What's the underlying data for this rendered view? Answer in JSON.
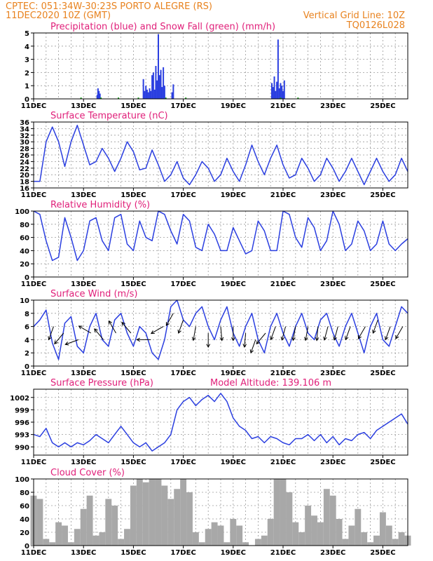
{
  "header": {
    "line1": "CPTEC:   051:34W-30:23S   PORTO ALEGRE (RS)",
    "line2": "11DEC2020 10Z (GMT)",
    "grid_note": "Vertical Grid Line: 10Z",
    "code": "TQ0126L028"
  },
  "colors": {
    "header": "#e8821e",
    "title": "#e0207a",
    "series": "#2b3fe0",
    "snow": "#19a019",
    "cloud": "#a8a8a8"
  },
  "x_tick_labels": [
    "11DEC",
    "13DEC",
    "15DEC",
    "17DEC",
    "19DEC",
    "21DEC",
    "23DEC",
    "25DEC"
  ],
  "chart_data": [
    {
      "id": "precip",
      "type": "bar",
      "title": "Precipitation (blue) and Snow Fall (green) (mm/h)",
      "ylim": [
        0,
        5
      ],
      "yticks": [
        0,
        1,
        2,
        3,
        4,
        5
      ],
      "x_range_days": [
        0,
        15.0
      ],
      "series": [
        {
          "name": "Precipitation",
          "x": [
            2.55,
            2.58,
            2.62,
            2.66,
            4.4,
            4.45,
            4.5,
            4.55,
            4.6,
            4.65,
            4.7,
            4.75,
            4.8,
            4.85,
            4.9,
            4.95,
            5.0,
            5.05,
            5.1,
            5.15,
            5.2,
            5.25,
            5.55,
            5.6,
            9.55,
            9.6,
            9.65,
            9.7,
            9.75,
            9.8,
            9.85,
            9.9,
            9.95,
            10.0,
            10.05
          ],
          "values": [
            0.3,
            0.8,
            0.6,
            0.4,
            1.5,
            0.6,
            1.0,
            0.7,
            0.5,
            0.8,
            0.6,
            1.8,
            2.0,
            0.7,
            2.5,
            1.4,
            4.9,
            1.8,
            2.2,
            0.9,
            2.4,
            1.0,
            0.5,
            1.1,
            1.2,
            0.9,
            1.7,
            0.6,
            1.3,
            4.5,
            0.8,
            1.2,
            1.0,
            0.6,
            1.4
          ]
        },
        {
          "name": "Snow Fall",
          "x": [
            1.9,
            2.7,
            3.4,
            4.2,
            5.3,
            6.1,
            9.9,
            10.6
          ],
          "values": [
            0.05,
            0.05,
            0.05,
            0.05,
            0.05,
            0.05,
            0.05,
            0.05
          ]
        }
      ]
    },
    {
      "id": "temp",
      "type": "line",
      "title": "Surface Temperature (nC)",
      "ylim": [
        16,
        36
      ],
      "yticks": [
        16,
        18,
        20,
        22,
        24,
        26,
        28,
        30,
        32,
        34,
        36
      ],
      "x_range_days": [
        0,
        15.0
      ],
      "series": [
        {
          "name": "Temperature",
          "x": [
            0,
            0.25,
            0.5,
            0.75,
            1.0,
            1.25,
            1.5,
            1.75,
            2.0,
            2.25,
            2.5,
            2.75,
            3.0,
            3.25,
            3.5,
            3.75,
            4.0,
            4.25,
            4.5,
            4.75,
            5.0,
            5.25,
            5.5,
            5.75,
            6.0,
            6.25,
            6.5,
            6.75,
            7.0,
            7.25,
            7.5,
            7.75,
            8.0,
            8.25,
            8.5,
            8.75,
            9.0,
            9.25,
            9.5,
            9.75,
            10.0,
            10.25,
            10.5,
            10.75,
            11.0,
            11.25,
            11.5,
            11.75,
            12.0,
            12.25,
            12.5,
            12.75,
            13.0,
            13.25,
            13.5,
            13.75,
            14.0,
            14.25,
            14.5,
            14.75,
            15.0
          ],
          "values": [
            18,
            18,
            30,
            34.5,
            30,
            22.5,
            30,
            35,
            29,
            23,
            24,
            28,
            25,
            21,
            25,
            30,
            27,
            21.5,
            22,
            27.5,
            23,
            18,
            20,
            24,
            19,
            17,
            20,
            24,
            22,
            18,
            20,
            25,
            21,
            18,
            23,
            29,
            24,
            20,
            25,
            29,
            23,
            19,
            20,
            25,
            22,
            18,
            20,
            25,
            22,
            18,
            21,
            25,
            21,
            17,
            21,
            25,
            21,
            18,
            20,
            25,
            21
          ]
        }
      ]
    },
    {
      "id": "rh",
      "type": "line",
      "title": "Relative Humidity (%)",
      "ylim": [
        0,
        100
      ],
      "yticks": [
        0,
        20,
        40,
        60,
        80,
        100
      ],
      "x_range_days": [
        0,
        15.0
      ],
      "series": [
        {
          "name": "Relative Humidity",
          "x": [
            0,
            0.25,
            0.5,
            0.75,
            1.0,
            1.25,
            1.5,
            1.75,
            2.0,
            2.25,
            2.5,
            2.75,
            3.0,
            3.25,
            3.5,
            3.75,
            4.0,
            4.25,
            4.5,
            4.75,
            5.0,
            5.25,
            5.5,
            5.75,
            6.0,
            6.25,
            6.5,
            6.75,
            7.0,
            7.25,
            7.5,
            7.75,
            8.0,
            8.25,
            8.5,
            8.75,
            9.0,
            9.25,
            9.5,
            9.75,
            10.0,
            10.25,
            10.5,
            10.75,
            11.0,
            11.25,
            11.5,
            11.75,
            12.0,
            12.25,
            12.5,
            12.75,
            13.0,
            13.25,
            13.5,
            13.75,
            14.0,
            14.25,
            14.5,
            14.75,
            15.0
          ],
          "values": [
            100,
            95,
            55,
            25,
            30,
            90,
            60,
            25,
            40,
            85,
            90,
            55,
            40,
            90,
            95,
            50,
            40,
            85,
            60,
            55,
            100,
            95,
            70,
            50,
            95,
            85,
            45,
            40,
            80,
            65,
            40,
            40,
            75,
            55,
            35,
            40,
            85,
            70,
            40,
            40,
            100,
            95,
            60,
            45,
            90,
            75,
            40,
            55,
            100,
            80,
            40,
            50,
            85,
            70,
            40,
            50,
            85,
            50,
            40,
            50,
            58
          ]
        }
      ]
    },
    {
      "id": "wind",
      "type": "line",
      "title": "Surface Wind (m/s)",
      "ylim": [
        0,
        10
      ],
      "yticks": [
        0,
        2,
        4,
        6,
        8,
        10
      ],
      "x_range_days": [
        0,
        15.0
      ],
      "series": [
        {
          "name": "Wind Speed",
          "x": [
            0,
            0.25,
            0.5,
            0.75,
            1.0,
            1.25,
            1.5,
            1.75,
            2.0,
            2.25,
            2.5,
            2.75,
            3.0,
            3.25,
            3.5,
            3.75,
            4.0,
            4.25,
            4.5,
            4.75,
            5.0,
            5.25,
            5.5,
            5.75,
            6.0,
            6.25,
            6.5,
            6.75,
            7.0,
            7.25,
            7.5,
            7.75,
            8.0,
            8.25,
            8.5,
            8.75,
            9.0,
            9.25,
            9.5,
            9.75,
            10.0,
            10.25,
            10.5,
            10.75,
            11.0,
            11.25,
            11.5,
            11.75,
            12.0,
            12.25,
            12.5,
            12.75,
            13.0,
            13.25,
            13.5,
            13.75,
            14.0,
            14.25,
            14.5,
            14.75,
            15.0
          ],
          "values": [
            6,
            7,
            8.5,
            3.5,
            1,
            6.5,
            7.5,
            3,
            2,
            6,
            8,
            4,
            3,
            7,
            8,
            5,
            3,
            6,
            5,
            2,
            1,
            4,
            9,
            10,
            7,
            6,
            8,
            9,
            6,
            4,
            7,
            9,
            5,
            3,
            6,
            8,
            4,
            2,
            6,
            8,
            5,
            3,
            6,
            8,
            5,
            4,
            7,
            8,
            5,
            3,
            6,
            8,
            5,
            2,
            6,
            8,
            4,
            3,
            6,
            9,
            8
          ]
        }
      ],
      "arrows": {
        "x": [
          0.8,
          1.2,
          1.8,
          2.3,
          2.8,
          3.3,
          3.9,
          4.7,
          5.2,
          5.6,
          6.0,
          6.5,
          7.0,
          7.5,
          8.0,
          8.5,
          8.9,
          9.3,
          9.7,
          10.1,
          10.5,
          11.0,
          11.4,
          11.8,
          12.2,
          12.7,
          13.3,
          13.8,
          14.3,
          14.8
        ],
        "speed": [
          6,
          5,
          4,
          5,
          4,
          5,
          5,
          4,
          6,
          8,
          7,
          6,
          5,
          6,
          6,
          5,
          4,
          5,
          6,
          6,
          6,
          6,
          6,
          6,
          6,
          6,
          6,
          7,
          6,
          6
        ],
        "dir_deg": [
          200,
          220,
          250,
          300,
          320,
          330,
          320,
          270,
          240,
          210,
          200,
          190,
          180,
          175,
          180,
          185,
          200,
          220,
          200,
          195,
          190,
          190,
          185,
          195,
          195,
          200,
          210,
          200,
          200,
          210
        ]
      }
    },
    {
      "id": "pressure",
      "type": "line",
      "title": "Surface Pressure (hPa)",
      "annotation": "Model Altitude: 139.106 m",
      "ylim": [
        988,
        1004
      ],
      "yticks": [
        990,
        993,
        996,
        999,
        1002
      ],
      "x_range_days": [
        0,
        15.0
      ],
      "series": [
        {
          "name": "Pressure",
          "x": [
            0,
            0.25,
            0.5,
            0.75,
            1.0,
            1.25,
            1.5,
            1.75,
            2.0,
            2.25,
            2.5,
            2.75,
            3.0,
            3.25,
            3.5,
            3.75,
            4.0,
            4.25,
            4.5,
            4.75,
            5.0,
            5.25,
            5.5,
            5.75,
            6.0,
            6.25,
            6.5,
            6.75,
            7.0,
            7.25,
            7.5,
            7.75,
            8.0,
            8.25,
            8.5,
            8.75,
            9.0,
            9.25,
            9.5,
            9.75,
            10.0,
            10.25,
            10.5,
            10.75,
            11.0,
            11.25,
            11.5,
            11.75,
            12.0,
            12.25,
            12.5,
            12.75,
            13.0,
            13.25,
            13.5,
            13.75,
            14.0,
            14.25,
            14.5,
            14.75,
            15.0
          ],
          "values": [
            993,
            992.5,
            994.5,
            991,
            990,
            991,
            990,
            991,
            990.5,
            991.5,
            993,
            992,
            991,
            993,
            995,
            993,
            991,
            990,
            991,
            989,
            990,
            991,
            993,
            999,
            1001,
            1002,
            1000,
            1001.5,
            1002.5,
            1001,
            1003,
            1001,
            997,
            995,
            994,
            992,
            992.5,
            991,
            992.5,
            992,
            991,
            990.5,
            992,
            992,
            993,
            991.5,
            993,
            991,
            992.5,
            990.5,
            992,
            991.5,
            993,
            993.5,
            992,
            994,
            995,
            996,
            997,
            998,
            995.5
          ]
        }
      ]
    },
    {
      "id": "cloud",
      "type": "bar",
      "title": "Cloud Cover (%)",
      "ylim": [
        0,
        100
      ],
      "yticks": [
        0,
        20,
        40,
        60,
        80,
        100
      ],
      "x_range_days": [
        0,
        15.0
      ],
      "series": [
        {
          "name": "Cloud Cover",
          "x": [
            0,
            0.25,
            0.5,
            0.75,
            1.0,
            1.25,
            1.5,
            1.75,
            2.0,
            2.25,
            2.5,
            2.75,
            3.0,
            3.25,
            3.5,
            3.75,
            4.0,
            4.25,
            4.5,
            4.75,
            5.0,
            5.25,
            5.5,
            5.75,
            6.0,
            6.25,
            6.5,
            6.75,
            7.0,
            7.25,
            7.5,
            7.75,
            8.0,
            8.25,
            8.5,
            8.75,
            9.0,
            9.25,
            9.5,
            9.75,
            10.0,
            10.25,
            10.5,
            10.75,
            11.0,
            11.25,
            11.5,
            11.75,
            12.0,
            12.25,
            12.5,
            12.75,
            13.0,
            13.25,
            13.5,
            13.75,
            14.0,
            14.25,
            14.5,
            14.75,
            15.0
          ],
          "values": [
            75,
            70,
            10,
            5,
            35,
            30,
            5,
            25,
            55,
            75,
            15,
            20,
            70,
            60,
            10,
            25,
            90,
            100,
            95,
            100,
            100,
            90,
            70,
            85,
            100,
            80,
            20,
            5,
            25,
            35,
            30,
            5,
            40,
            30,
            5,
            0,
            10,
            15,
            40,
            100,
            100,
            80,
            35,
            20,
            60,
            45,
            35,
            85,
            75,
            40,
            10,
            30,
            55,
            20,
            5,
            15,
            50,
            30,
            10,
            20,
            15
          ]
        }
      ]
    }
  ]
}
